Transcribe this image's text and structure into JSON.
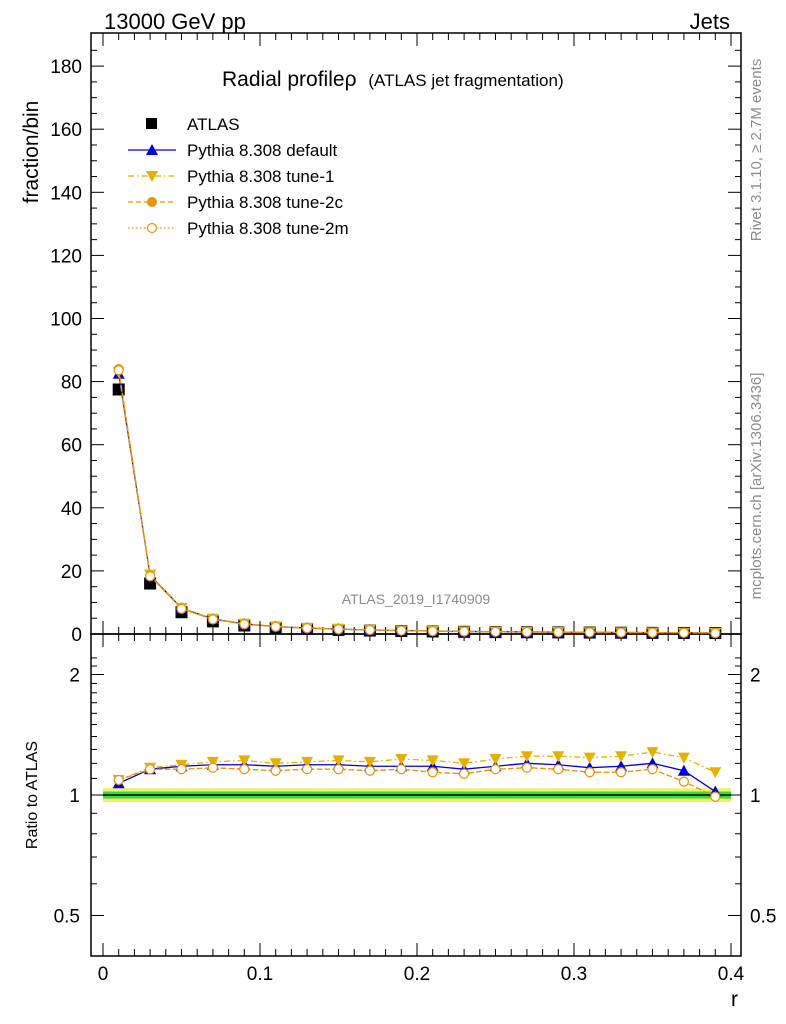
{
  "header": {
    "left": "13000 GeV pp",
    "right": "Jets"
  },
  "side_labels": {
    "rivet": "Rivet 3.1.10, ≥ 2.7M events",
    "mcplots": "mcplots.cern.ch [arXiv:1306.3436]"
  },
  "title": {
    "main": "Radial profileρ",
    "sub": "(ATLAS jet fragmentation)"
  },
  "analysis_id": "ATLAS_2019_I1740909",
  "legend": [
    {
      "label": "ATLAS"
    },
    {
      "label": "Pythia 8.308 default"
    },
    {
      "label": "Pythia 8.308 tune-1"
    },
    {
      "label": "Pythia 8.308 tune-2c"
    },
    {
      "label": "Pythia 8.308 tune-2m"
    }
  ],
  "chart_data": [
    {
      "type": "line",
      "panel": "main",
      "ylabel": "fraction/bin",
      "xlabel": "",
      "xlim": [
        0,
        0.4
      ],
      "ylim": [
        0,
        190
      ],
      "y_ticks": [
        0,
        20,
        40,
        60,
        80,
        100,
        120,
        140,
        160,
        180
      ],
      "y_tick_labels": [
        "0",
        "20",
        "40",
        "60",
        "80",
        "100",
        "120",
        "140",
        "160",
        "180"
      ],
      "x": [
        0.01,
        0.03,
        0.05,
        0.07,
        0.09,
        0.11,
        0.13,
        0.15,
        0.17,
        0.19,
        0.21,
        0.23,
        0.25,
        0.27,
        0.29,
        0.31,
        0.33,
        0.35,
        0.37,
        0.39
      ],
      "series": [
        {
          "name": "ATLAS",
          "color": "#000000",
          "style": "data",
          "values": [
            77.5,
            16.0,
            6.9,
            4.0,
            2.7,
            2.0,
            1.6,
            1.3,
            1.1,
            0.95,
            0.8,
            0.7,
            0.6,
            0.55,
            0.5,
            0.45,
            0.4,
            0.36,
            0.33,
            0.3
          ]
        },
        {
          "name": "Pythia 8.308 default",
          "color": "#0000dd",
          "style": "solid-triangle-up",
          "values": [
            82.5,
            18.6,
            8.2,
            4.75,
            3.2,
            2.36,
            1.9,
            1.55,
            1.3,
            1.12,
            0.94,
            0.81,
            0.71,
            0.66,
            0.59,
            0.53,
            0.47,
            0.43,
            0.38,
            0.3
          ]
        },
        {
          "name": "Pythia 8.308 tune-1",
          "color": "#e5b000",
          "style": "dashdot-triangle-down",
          "values": [
            83.0,
            18.8,
            8.3,
            4.85,
            3.28,
            2.4,
            1.94,
            1.58,
            1.34,
            1.16,
            0.98,
            0.84,
            0.74,
            0.69,
            0.62,
            0.56,
            0.5,
            0.46,
            0.41,
            0.34
          ]
        },
        {
          "name": "Pythia 8.308 tune-2c",
          "color": "#e8950a",
          "style": "dashed-circle-filled",
          "values": [
            84.0,
            18.4,
            8.0,
            4.65,
            3.12,
            2.3,
            1.86,
            1.51,
            1.27,
            1.1,
            0.92,
            0.79,
            0.7,
            0.64,
            0.57,
            0.51,
            0.46,
            0.42,
            0.36,
            0.29
          ]
        },
        {
          "name": "Pythia 8.308 tune-2m",
          "color": "#e8950a",
          "style": "dotted-circle-open",
          "values": [
            83.6,
            18.3,
            8.0,
            4.63,
            3.1,
            2.29,
            1.85,
            1.5,
            1.26,
            1.09,
            0.92,
            0.79,
            0.69,
            0.64,
            0.57,
            0.51,
            0.46,
            0.41,
            0.36,
            0.29
          ]
        }
      ]
    },
    {
      "type": "line",
      "panel": "ratio",
      "ylabel": "Ratio to ATLAS",
      "xlabel": "r",
      "xlim": [
        0,
        0.4
      ],
      "ylim": [
        0.4,
        2.3
      ],
      "log_y": true,
      "y_ticks": [
        0.5,
        1,
        2
      ],
      "y_tick_labels": [
        "0.5",
        "1",
        "2"
      ],
      "x_ticks": [
        0,
        0.1,
        0.2,
        0.3,
        0.4
      ],
      "x_tick_labels": [
        "0",
        "0.1",
        "0.2",
        "0.3",
        "0.4"
      ],
      "x": [
        0.01,
        0.03,
        0.05,
        0.07,
        0.09,
        0.11,
        0.13,
        0.15,
        0.17,
        0.19,
        0.21,
        0.23,
        0.25,
        0.27,
        0.29,
        0.31,
        0.33,
        0.35,
        0.37,
        0.39
      ],
      "band": {
        "inner_color": "#33dd33",
        "outer_color": "#f0f070",
        "inner": 0.02,
        "outer": 0.04
      },
      "series": [
        {
          "name": "Pythia 8.308 default",
          "color": "#0000dd",
          "style": "solid-triangle-up",
          "values": [
            1.07,
            1.16,
            1.18,
            1.19,
            1.19,
            1.18,
            1.19,
            1.19,
            1.18,
            1.18,
            1.18,
            1.16,
            1.18,
            1.2,
            1.19,
            1.17,
            1.18,
            1.2,
            1.15,
            1.02
          ]
        },
        {
          "name": "Pythia 8.308 tune-1",
          "color": "#e5b000",
          "style": "dashdot-triangle-down",
          "values": [
            1.09,
            1.17,
            1.19,
            1.21,
            1.22,
            1.2,
            1.21,
            1.22,
            1.21,
            1.23,
            1.22,
            1.2,
            1.23,
            1.25,
            1.25,
            1.24,
            1.25,
            1.28,
            1.24,
            1.14
          ]
        },
        {
          "name": "Pythia 8.308 tune-2c",
          "color": "#e8950a",
          "style": "dashed-circle-filled",
          "values": [
            1.09,
            1.16,
            1.16,
            1.17,
            1.16,
            1.15,
            1.16,
            1.16,
            1.15,
            1.16,
            1.14,
            1.13,
            1.16,
            1.17,
            1.16,
            1.14,
            1.14,
            1.16,
            1.08,
            0.99
          ]
        },
        {
          "name": "Pythia 8.308 tune-2m",
          "color": "#e8950a",
          "style": "dotted-circle-open",
          "values": [
            1.09,
            1.16,
            1.16,
            1.17,
            1.16,
            1.15,
            1.16,
            1.16,
            1.15,
            1.16,
            1.14,
            1.13,
            1.16,
            1.17,
            1.16,
            1.14,
            1.14,
            1.16,
            1.08,
            0.99
          ]
        }
      ]
    }
  ]
}
